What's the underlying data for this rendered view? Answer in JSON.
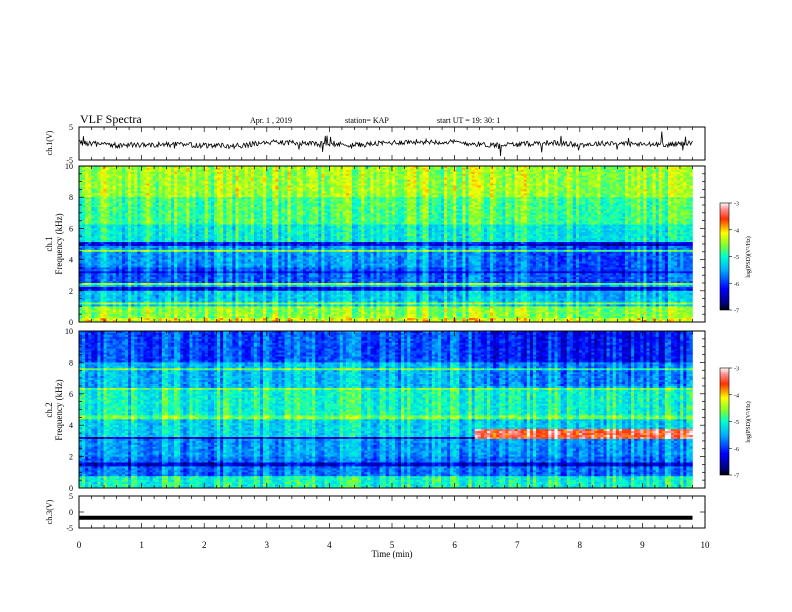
{
  "header": {
    "title": "VLF Spectra",
    "date": "Apr. 1 , 2019",
    "station": "station= KAP",
    "start": "start UT = 19: 30: 1"
  },
  "chart_data": [
    {
      "type": "line",
      "panel": "ch1-waveform",
      "ylabel": "ch.1(V)",
      "ylim": [
        -5,
        5
      ],
      "yticks": [
        5,
        -5
      ],
      "xlim": [
        0,
        10
      ],
      "x": [
        0,
        0.5,
        1,
        1.5,
        2,
        2.5,
        3,
        3.5,
        4,
        4.5,
        5,
        5.5,
        6,
        6.5,
        7,
        7.5,
        8,
        8.5,
        9,
        9.5,
        9.8
      ],
      "y": [
        0.3,
        -0.6,
        -0.4,
        -0.3,
        -0.6,
        -0.8,
        0.3,
        0.2,
        -0.2,
        -0.4,
        0.3,
        0.6,
        0.4,
        -0.4,
        -0.3,
        0.3,
        -0.4,
        0.2,
        -0.3,
        -0.2,
        0.2
      ]
    },
    {
      "type": "heatmap",
      "panel": "ch1-spectrogram",
      "ylabel": "ch.1",
      "ylabel2": "Frequency (kHz)",
      "ylim": [
        0,
        10
      ],
      "yticks": [
        0,
        2,
        4,
        6,
        8,
        10
      ],
      "xlim": [
        0,
        10
      ],
      "data_xmax": 9.8,
      "colorbar": {
        "label": "log(PSD)(V²/Hz)",
        "range": [
          -7,
          -3
        ],
        "ticks": [
          -3,
          -4,
          -5,
          -6,
          -7
        ]
      }
    },
    {
      "type": "heatmap",
      "panel": "ch2-spectrogram",
      "ylabel": "ch.2",
      "ylabel2": "Frequency (kHz)",
      "ylim": [
        0,
        10
      ],
      "yticks": [
        0,
        2,
        4,
        6,
        8,
        10
      ],
      "xlim": [
        0,
        10
      ],
      "data_xmax": 9.8,
      "colorbar": {
        "label": "log(PSD)(V²/Hz)",
        "range": [
          -7,
          -3
        ],
        "ticks": [
          -3,
          -4,
          -5,
          -6,
          -7
        ]
      }
    },
    {
      "type": "line",
      "panel": "ch3-waveform",
      "ylabel": "ch.3(V)",
      "ylim": [
        -5,
        5
      ],
      "yticks": [
        5,
        0,
        -5
      ],
      "xlim": [
        0,
        10
      ],
      "x": [
        0,
        9.8
      ],
      "y": [
        -1.8,
        -1.8
      ]
    }
  ],
  "xaxis": {
    "label": "Time (min)",
    "ticks": [
      0,
      1,
      2,
      3,
      4,
      5,
      6,
      7,
      8,
      9,
      10
    ]
  },
  "colors": {
    "line": "#000000",
    "frame": "#000000"
  }
}
